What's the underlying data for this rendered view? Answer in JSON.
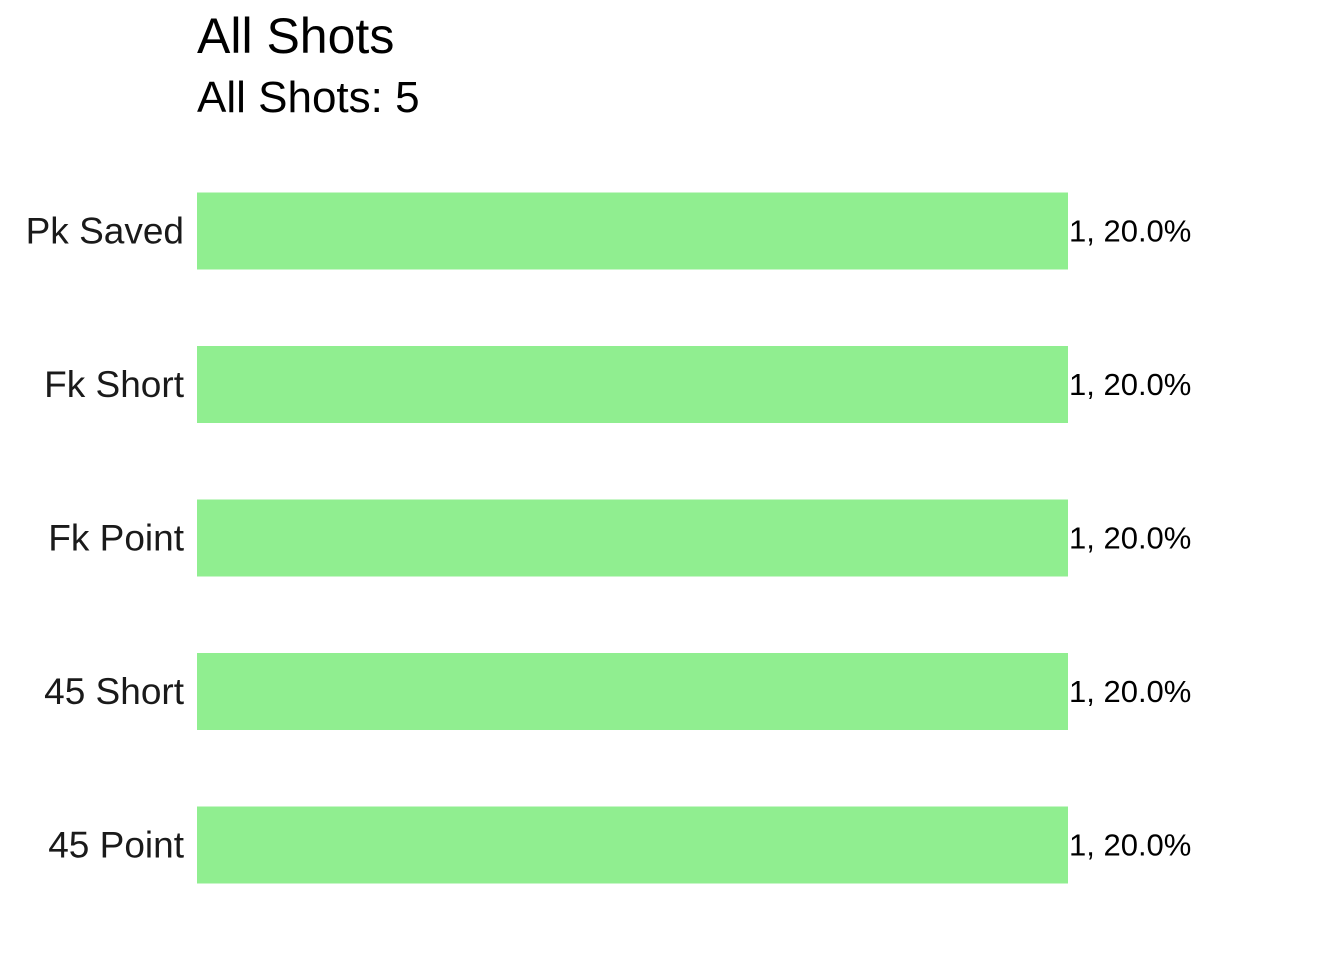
{
  "chart_data": {
    "type": "bar",
    "orientation": "horizontal",
    "title": "All Shots",
    "subtitle": "All Shots: 5",
    "categories": [
      "Pk Saved",
      "Fk Short",
      "Fk Point",
      "45 Short",
      "45 Point"
    ],
    "values": [
      1,
      1,
      1,
      1,
      1
    ],
    "data_labels": [
      "1, 20.0%",
      "1, 20.0%",
      "1, 20.0%",
      "1, 20.0%",
      "1, 20.0%"
    ],
    "xlim": [
      0,
      1
    ],
    "grid": false,
    "legend": "none",
    "xlabel": "",
    "ylabel": "",
    "colors": {
      "bar": "#90ee90",
      "background": "#ffffff"
    }
  }
}
